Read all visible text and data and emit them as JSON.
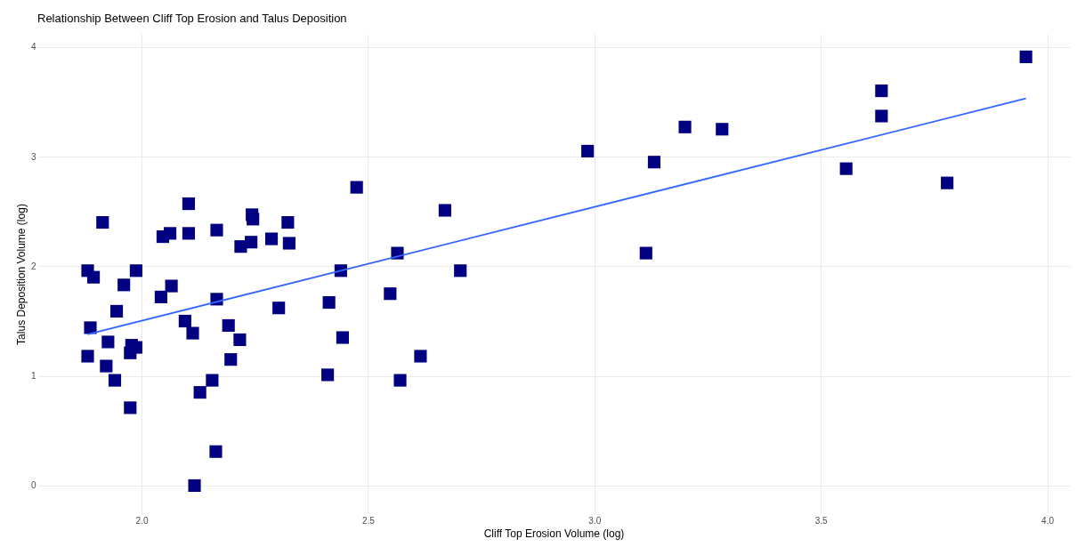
{
  "chart_data": {
    "type": "scatter",
    "title": "Relationship Between Cliff Top Erosion and Talus Deposition",
    "xlabel": "Cliff Top Erosion Volume (log)",
    "ylabel": "Talus Deposition Volume (log)",
    "xlim": [
      1.77,
      4.05
    ],
    "ylim": [
      -0.26,
      4.12
    ],
    "xticks": [
      {
        "value": 2,
        "label": "2.0"
      },
      {
        "value": 2.5,
        "label": "2.5"
      },
      {
        "value": 3,
        "label": "3.0"
      },
      {
        "value": 3.5,
        "label": "3.5"
      },
      {
        "value": 4,
        "label": "4.0"
      }
    ],
    "yticks": [
      0,
      1,
      2,
      3,
      4
    ],
    "grid": true,
    "series": [
      {
        "marker": "square",
        "color": "#000080",
        "x": [
          1.881,
          1.881,
          1.887,
          1.894,
          1.914,
          1.922,
          1.926,
          1.941,
          1.945,
          1.961,
          1.975,
          1.975,
          1.978,
          1.988,
          1.988,
          2.043,
          2.047,
          2.063,
          2.066,
          2.096,
          2.104,
          2.104,
          2.113,
          2.129,
          2.156,
          2.166,
          2.166,
          2.164,
          2.117,
          2.192,
          2.197,
          2.217,
          2.219,
          2.242,
          2.246,
          2.244,
          2.287,
          2.303,
          2.323,
          2.326,
          2.411,
          2.414,
          2.44,
          2.444,
          2.475,
          2.549,
          2.565,
          2.571,
          2.616,
          2.67,
          2.704,
          2.985,
          3.114,
          3.132,
          3.2,
          3.282,
          3.556,
          3.634,
          3.634,
          3.779,
          3.953
        ],
        "values": [
          1.18,
          1.96,
          1.44,
          1.9,
          2.4,
          1.09,
          1.31,
          0.96,
          1.59,
          1.83,
          0.71,
          1.21,
          1.28,
          1.26,
          1.96,
          1.72,
          2.27,
          2.3,
          1.82,
          1.5,
          2.57,
          2.3,
          1.39,
          0.85,
          0.96,
          2.33,
          1.7,
          0.31,
          0.0,
          1.46,
          1.15,
          1.33,
          2.18,
          2.22,
          2.43,
          2.47,
          2.25,
          1.62,
          2.4,
          2.21,
          1.01,
          1.67,
          1.96,
          1.35,
          2.72,
          1.75,
          2.12,
          0.96,
          1.18,
          2.51,
          1.96,
          3.05,
          2.12,
          2.95,
          3.27,
          3.25,
          2.89,
          3.6,
          3.37,
          2.76,
          3.91
        ]
      },
      {
        "type": "line",
        "color": "#3366ff",
        "x": [
          1.881,
          3.953
        ],
        "values": [
          1.38,
          3.53
        ]
      }
    ]
  }
}
